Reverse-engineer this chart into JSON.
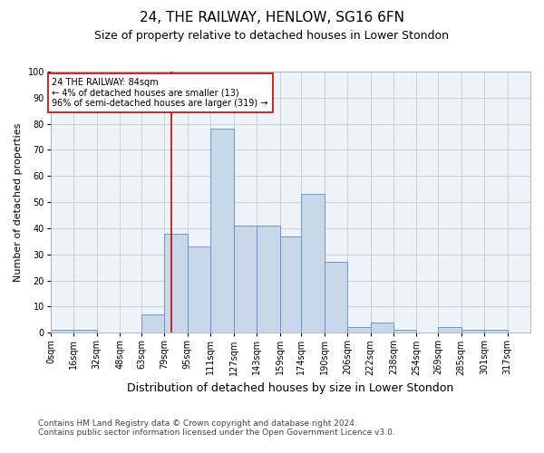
{
  "title": "24, THE RAILWAY, HENLOW, SG16 6FN",
  "subtitle": "Size of property relative to detached houses in Lower Stondon",
  "xlabel": "Distribution of detached houses by size in Lower Stondon",
  "ylabel": "Number of detached properties",
  "bin_labels": [
    "0sqm",
    "16sqm",
    "32sqm",
    "48sqm",
    "63sqm",
    "79sqm",
    "95sqm",
    "111sqm",
    "127sqm",
    "143sqm",
    "159sqm",
    "174sqm",
    "190sqm",
    "206sqm",
    "222sqm",
    "238sqm",
    "254sqm",
    "269sqm",
    "285sqm",
    "301sqm",
    "317sqm"
  ],
  "bar_heights": [
    1,
    1,
    0,
    0,
    7,
    38,
    33,
    78,
    41,
    41,
    37,
    53,
    27,
    2,
    4,
    1,
    0,
    2,
    1,
    1,
    0
  ],
  "bar_color": "#c8d8e8",
  "bar_edge_color": "#5b8fc9",
  "grid_color": "#c0ccdd",
  "background_color": "#eef2f9",
  "marker_x_label": "79sqm",
  "marker_line_color": "#cc0000",
  "annotation_text": "24 THE RAILWAY: 84sqm\n← 4% of detached houses are smaller (13)\n96% of semi-detached houses are larger (319) →",
  "annotation_box_color": "#cc0000",
  "footnote1": "Contains HM Land Registry data © Crown copyright and database right 2024.",
  "footnote2": "Contains public sector information licensed under the Open Government Licence v3.0.",
  "ylim": [
    0,
    100
  ],
  "yticks": [
    0,
    10,
    20,
    30,
    40,
    50,
    60,
    70,
    80,
    90,
    100
  ],
  "title_fontsize": 11,
  "subtitle_fontsize": 9,
  "xlabel_fontsize": 9,
  "ylabel_fontsize": 8,
  "tick_fontsize": 7,
  "footnote_fontsize": 6.5,
  "bin_values": [
    0,
    16,
    32,
    48,
    63,
    79,
    95,
    111,
    127,
    143,
    159,
    174,
    190,
    206,
    222,
    238,
    254,
    269,
    285,
    301,
    317
  ]
}
